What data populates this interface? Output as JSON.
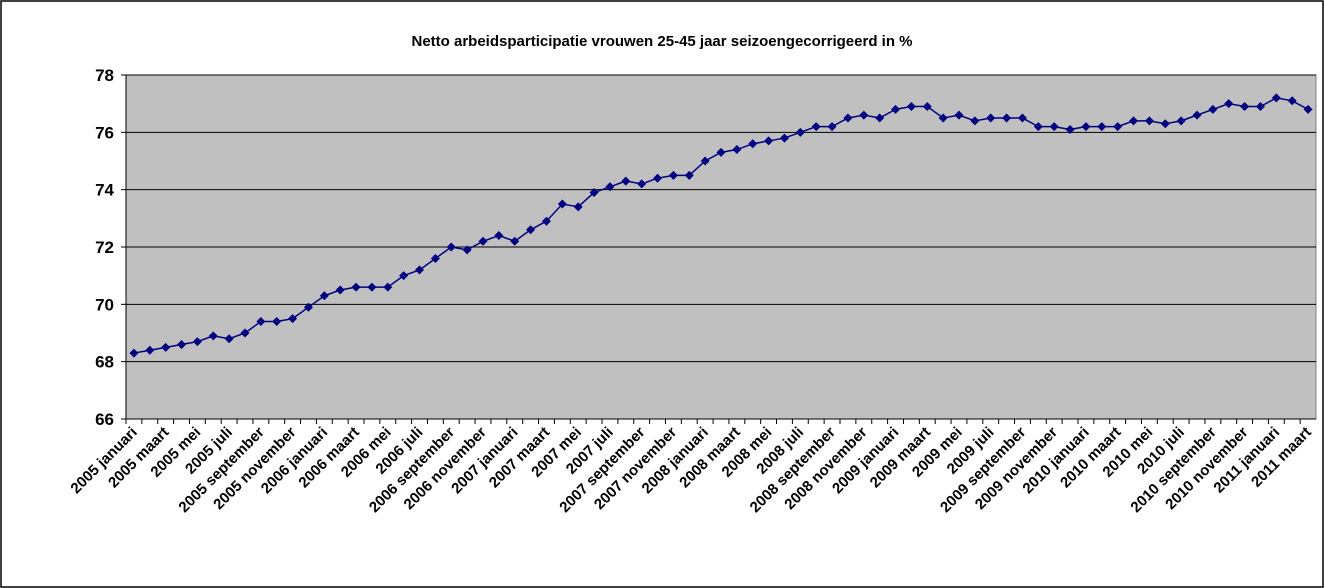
{
  "chart_data": {
    "type": "line",
    "title": "Netto arbeidsparticipatie vrouwen 25-45 jaar seizoengecorrigeerd in %",
    "categories": [
      "2005 januari",
      null,
      "2005 maart",
      null,
      "2005 mei",
      null,
      "2005 juli",
      null,
      "2005 september",
      null,
      "2005 november",
      null,
      "2006 januari",
      null,
      "2006 maart",
      null,
      "2006 mei",
      null,
      "2006 juli",
      null,
      "2006 september",
      null,
      "2006 november",
      null,
      "2007 januari",
      null,
      "2007 maart",
      null,
      "2007 mei",
      null,
      "2007 juli",
      null,
      "2007 september",
      null,
      "2007 november",
      null,
      "2008 januari",
      null,
      "2008 maart",
      null,
      "2008 mei",
      null,
      "2008 juli",
      null,
      "2008 september",
      null,
      "2008 november",
      null,
      "2009 januari",
      null,
      "2009 maart",
      null,
      "2009 mei",
      null,
      "2009 juli",
      null,
      "2009 september",
      null,
      "2009 november",
      null,
      "2010 januari",
      null,
      "2010 maart",
      null,
      "2010 mei",
      null,
      "2010 juli",
      null,
      "2010 september",
      null,
      "2010 november",
      null,
      "2011 januari",
      null,
      "2011 maart"
    ],
    "values": [
      68.3,
      68.4,
      68.5,
      68.6,
      68.7,
      68.9,
      68.8,
      69.0,
      69.4,
      69.4,
      69.5,
      69.9,
      70.3,
      70.5,
      70.6,
      70.6,
      70.6,
      71.0,
      71.2,
      71.6,
      72.0,
      71.9,
      72.2,
      72.4,
      72.2,
      72.6,
      72.9,
      73.5,
      73.4,
      73.9,
      74.1,
      74.3,
      74.2,
      74.4,
      74.5,
      74.5,
      75.0,
      75.3,
      75.4,
      75.6,
      75.7,
      75.8,
      76.0,
      76.2,
      76.2,
      76.5,
      76.6,
      76.5,
      76.8,
      76.9,
      76.9,
      76.5,
      76.6,
      76.4,
      76.5,
      76.5,
      76.5,
      76.2,
      76.2,
      76.1,
      76.2,
      76.2,
      76.2,
      76.4,
      76.4,
      76.3,
      76.4,
      76.6,
      76.8,
      77.0,
      76.9,
      76.9,
      77.2,
      77.1,
      76.8
    ],
    "color": "#000080",
    "ylim": [
      66,
      78
    ],
    "yticks": [
      66,
      68,
      70,
      72,
      74,
      76,
      78
    ],
    "grid": true
  }
}
